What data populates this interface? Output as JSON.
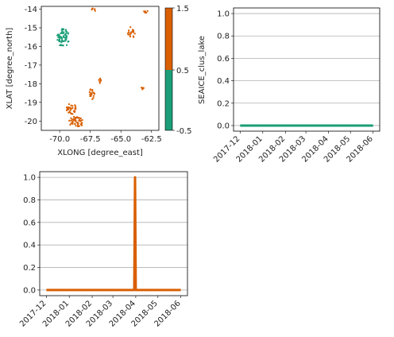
{
  "chart_data": [
    {
      "type": "heatmap",
      "xlabel": "XLONG [degree_east]",
      "ylabel": "XLAT [degree_north]",
      "xlim": [
        -71.5,
        -61.9
      ],
      "ylim": [
        -20.5,
        -13.85
      ],
      "xticks": [
        "-70.0",
        "-67.5",
        "-65.0",
        "-62.5"
      ],
      "yticks": [
        "-14",
        "-15",
        "-16",
        "-17",
        "-18",
        "-19",
        "-20"
      ],
      "colorbar": {
        "ticks": [
          "-0.5",
          "0.5",
          "1.5"
        ],
        "categories": [
          {
            "value": 0,
            "color": "#1b9e77"
          },
          {
            "value": 1,
            "color": "#d95f02"
          }
        ]
      },
      "clusters": [
        {
          "value": 0,
          "lon": -69.8,
          "lat": -15.5,
          "spread_lon": 0.5,
          "spread_lat": 0.5
        },
        {
          "value": 1,
          "lon": -69.1,
          "lat": -19.3,
          "spread_lon": 0.4,
          "spread_lat": 0.3
        },
        {
          "value": 1,
          "lon": -68.7,
          "lat": -20.0,
          "spread_lon": 0.6,
          "spread_lat": 0.3
        },
        {
          "value": 1,
          "lon": -67.4,
          "lat": -18.5,
          "spread_lon": 0.25,
          "spread_lat": 0.3
        },
        {
          "value": 1,
          "lon": -64.2,
          "lat": -15.2,
          "spread_lon": 0.3,
          "spread_lat": 0.3
        },
        {
          "value": 1,
          "lon": -67.3,
          "lat": -14.0,
          "spread_lon": 0.2,
          "spread_lat": 0.1
        },
        {
          "value": 1,
          "lon": -63.0,
          "lat": -14.1,
          "spread_lon": 0.2,
          "spread_lat": 0.1
        },
        {
          "value": 1,
          "lon": -66.8,
          "lat": -17.8,
          "spread_lon": 0.15,
          "spread_lat": 0.15
        },
        {
          "value": 1,
          "lon": -63.3,
          "lat": -18.2,
          "spread_lon": 0.1,
          "spread_lat": 0.1
        }
      ]
    },
    {
      "type": "line",
      "xlabel": "",
      "ylabel": "SEAICE_clus_lake",
      "x": [
        "2017-12-01",
        "2018-06-01"
      ],
      "xticks": [
        "2017-12",
        "2018-01",
        "2018-02",
        "2018-03",
        "2018-04",
        "2018-05",
        "2018-06"
      ],
      "ylim": [
        -0.05,
        1.05
      ],
      "yticks": [
        "0.0",
        "0.2",
        "0.4",
        "0.6",
        "0.8",
        "1.0"
      ],
      "grid": "horizontal",
      "series": [
        {
          "color": "#1b9e77",
          "x": [
            "2017-12-01",
            "2018-06-01"
          ],
          "values": [
            0,
            0
          ]
        }
      ]
    },
    {
      "type": "line",
      "xlabel": "",
      "ylabel": "",
      "xticks": [
        "2017-12",
        "2018-01",
        "2018-02",
        "2018-03",
        "2018-04",
        "2018-05",
        "2018-06"
      ],
      "ylim": [
        -0.05,
        1.05
      ],
      "yticks": [
        "0.0",
        "0.2",
        "0.4",
        "0.6",
        "0.8",
        "1.0"
      ],
      "grid": "horizontal",
      "series": [
        {
          "color": "#d95f02",
          "x": [
            "2017-12-01",
            "2018-03-30",
            "2018-03-31",
            "2018-03-31",
            "2018-04-01",
            "2018-06-01"
          ],
          "values": [
            0,
            0,
            1,
            1,
            0,
            0
          ]
        }
      ]
    }
  ]
}
